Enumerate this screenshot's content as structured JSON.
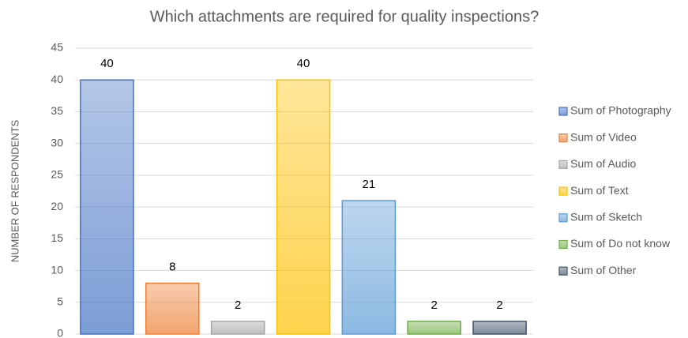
{
  "chart_data": {
    "type": "bar",
    "title": "Which attachments are required for quality inspections?",
    "y_label": "NUMBER OF RESPONDENTS",
    "categories": [
      null
    ],
    "series": [
      {
        "name": "Sum of Photography",
        "color": "#4472c4",
        "values": [
          40
        ]
      },
      {
        "name": "Sum of Video",
        "color": "#ed7d31",
        "values": [
          8
        ]
      },
      {
        "name": "Sum of Audio",
        "color": "#a5a5a5",
        "values": [
          2
        ]
      },
      {
        "name": "Sum of Text",
        "color": "#ffc000",
        "values": [
          40
        ]
      },
      {
        "name": "Sum of Sketch",
        "color": "#5b9bd5",
        "values": [
          21
        ]
      },
      {
        "name": "Sum of Do not know",
        "color": "#70ad47",
        "values": [
          2
        ]
      },
      {
        "name": "Sum of Other",
        "color": "#44546a",
        "values": [
          2
        ]
      }
    ],
    "ylim": [
      0,
      45
    ],
    "yticks": [
      0,
      5,
      10,
      15,
      20,
      25,
      30,
      35,
      40,
      45
    ],
    "grid": true,
    "legend": "right"
  }
}
